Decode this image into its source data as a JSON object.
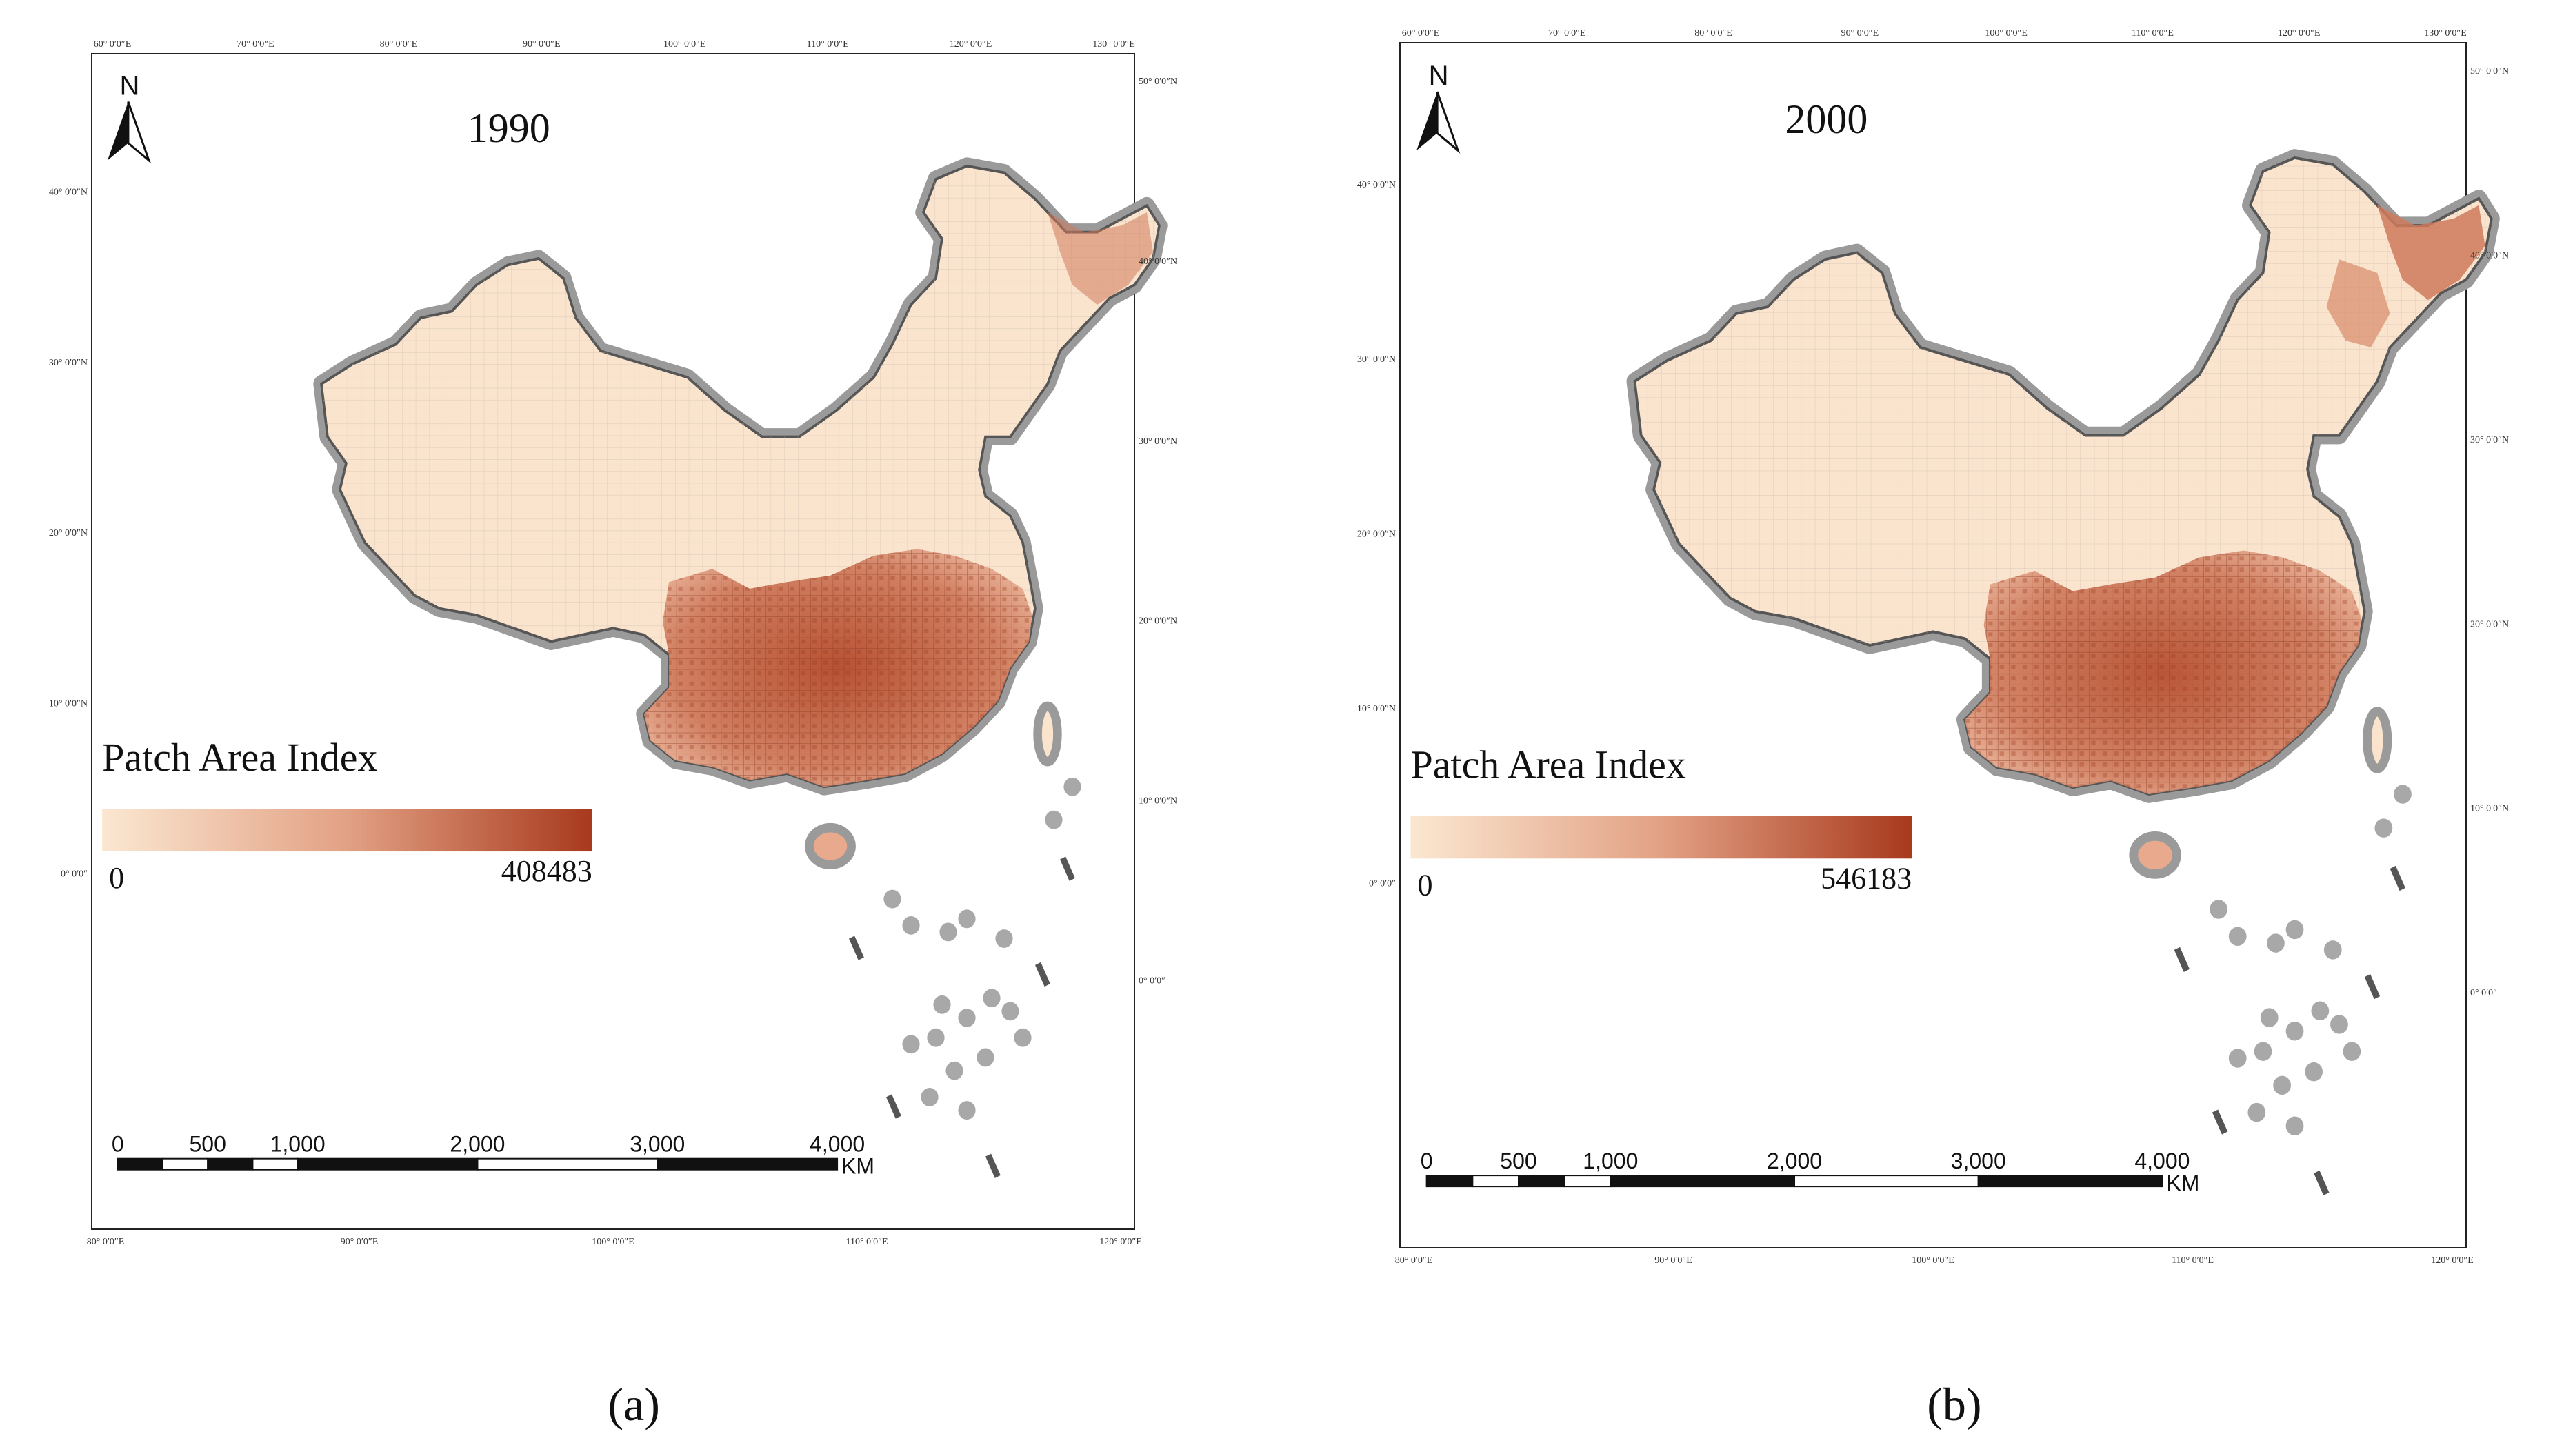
{
  "panels": [
    {
      "id": "a",
      "year": "1990",
      "legend_title": "Patch Area Index",
      "legend_min": "0",
      "legend_max": "408483",
      "north": "N",
      "scale_labels": [
        "0",
        "500",
        "1,000",
        "2,000",
        "3,000",
        "4,000"
      ],
      "scale_unit": "KM",
      "top_ticks": [
        "60° 0′0″E",
        "70° 0′0″E",
        "80° 0′0″E",
        "90° 0′0″E",
        "100° 0′0″E",
        "110° 0′0″E",
        "120° 0′0″E",
        "130° 0′0″E"
      ],
      "bottom_ticks": [
        "80° 0′0″E",
        "90° 0′0″E",
        "100° 0′0″E",
        "110° 0′0″E",
        "120° 0′0″E"
      ],
      "left_ticks": [
        "40° 0′0″N",
        "30° 0′0″N",
        "20° 0′0″N",
        "10° 0′0″N",
        "0° 0′0″"
      ],
      "right_ticks": [
        "50° 0′0″N",
        "40° 0′0″N",
        "30° 0′0″N",
        "20° 0′0″N",
        "10° 0′0″N",
        "0° 0′0″"
      ],
      "caption": "(a)"
    },
    {
      "id": "b",
      "year": "2000",
      "legend_title": "Patch Area Index",
      "legend_min": "0",
      "legend_max": "546183",
      "north": "N",
      "scale_labels": [
        "0",
        "500",
        "1,000",
        "2,000",
        "3,000",
        "4,000"
      ],
      "scale_unit": "KM",
      "top_ticks": [
        "60° 0′0″E",
        "70° 0′0″E",
        "80° 0′0″E",
        "90° 0′0″E",
        "100° 0′0″E",
        "110° 0′0″E",
        "120° 0′0″E",
        "130° 0′0″E"
      ],
      "bottom_ticks": [
        "80° 0′0″E",
        "90° 0′0″E",
        "100° 0′0″E",
        "110° 0′0″E",
        "120° 0′0″E"
      ],
      "left_ticks": [
        "40° 0′0″N",
        "30° 0′0″N",
        "20° 0′0″N",
        "10° 0′0″N",
        "0° 0′0″"
      ],
      "right_ticks": [
        "50° 0′0″N",
        "40° 0′0″N",
        "30° 0′0″N",
        "20° 0′0″N",
        "10° 0′0″N",
        "0° 0′0″"
      ],
      "caption": "(b)"
    }
  ],
  "colors": {
    "low": "#fbe7d1",
    "mid": "#e2a184",
    "high": "#a8391d",
    "coast": "#9a9a9a",
    "land": "#fae4cd",
    "boundary": "#b9b0a8"
  }
}
